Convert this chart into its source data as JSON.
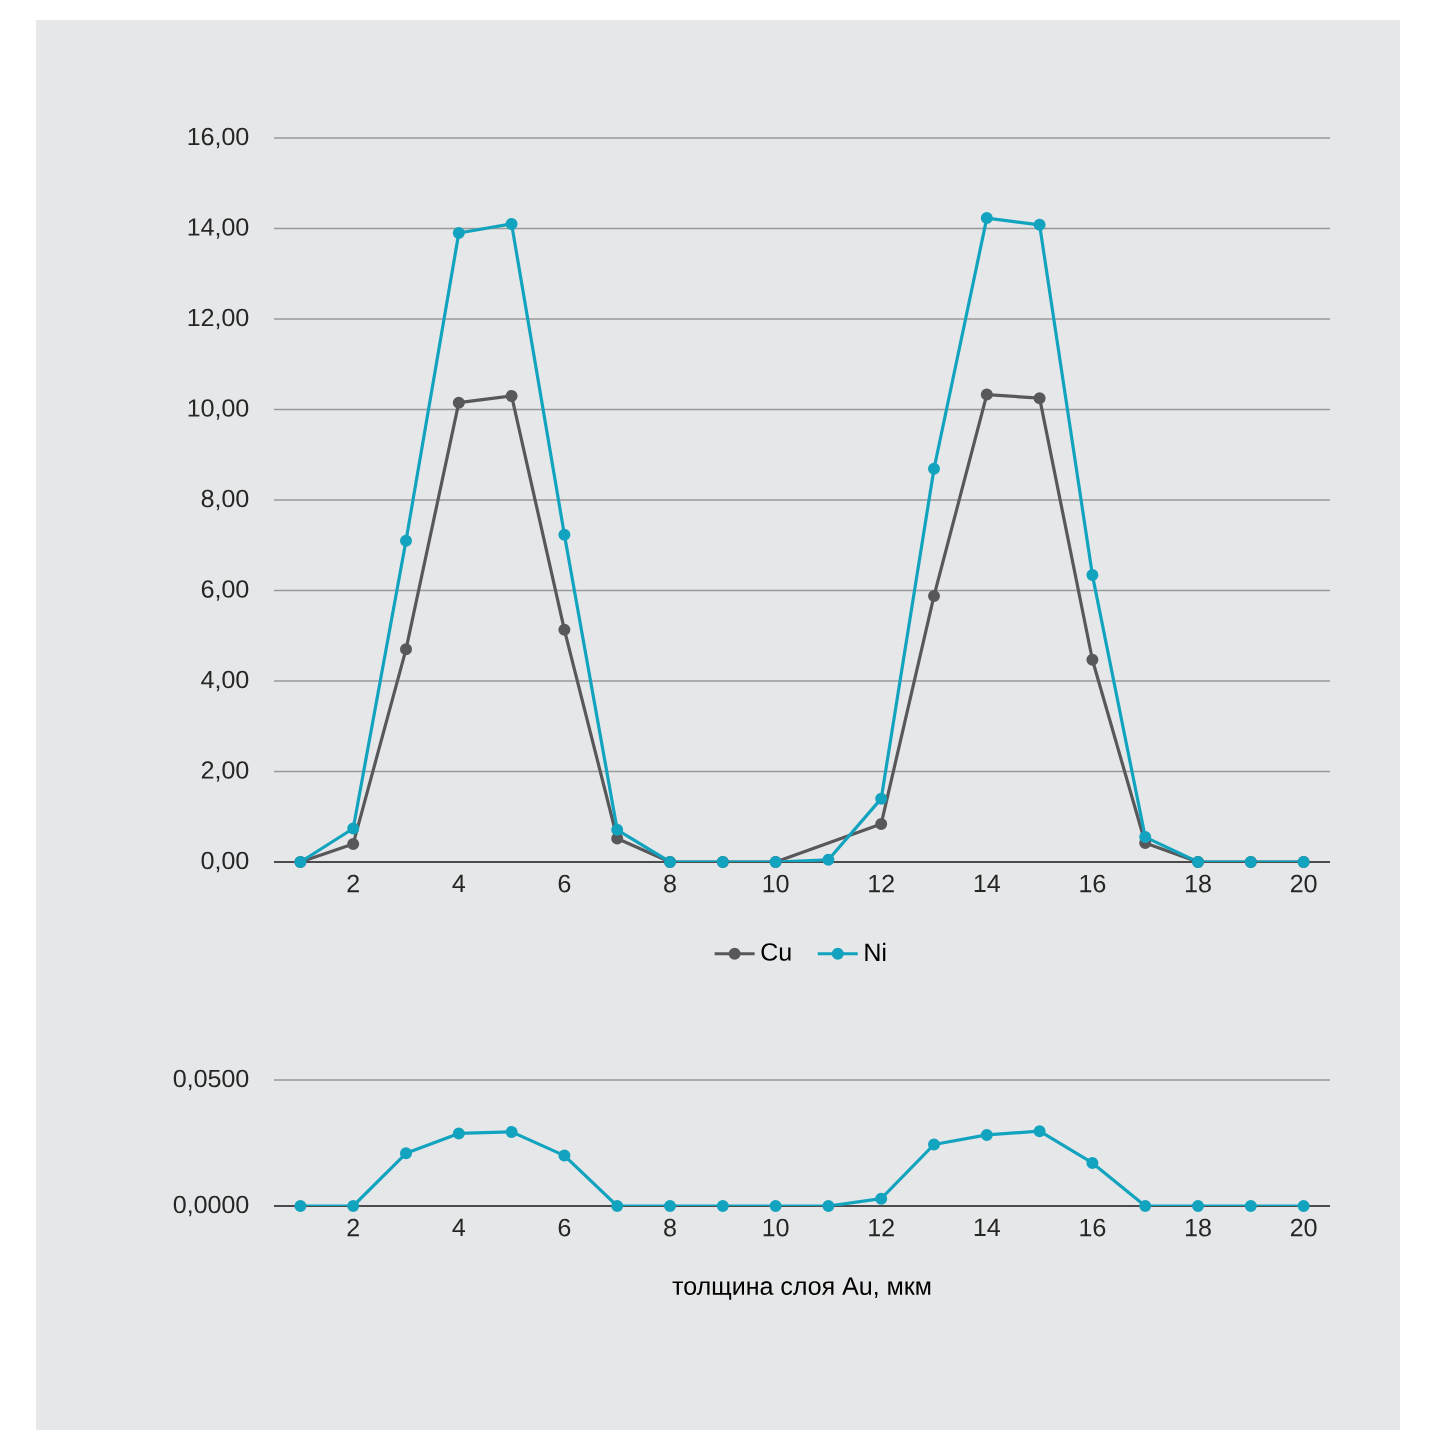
{
  "chart_data": [
    {
      "type": "line",
      "x": [
        1,
        2,
        3,
        4,
        5,
        6,
        7,
        8,
        9,
        10,
        11,
        12,
        13,
        14,
        15,
        16,
        17,
        18,
        19,
        20
      ],
      "xlim": [
        0.5,
        20.5
      ],
      "xticks": [
        2,
        4,
        6,
        8,
        10,
        12,
        14,
        16,
        18,
        20
      ],
      "ylim": [
        0,
        16
      ],
      "yticks": [
        {
          "value": 0,
          "label": "0,00"
        },
        {
          "value": 2,
          "label": "2,00"
        },
        {
          "value": 4,
          "label": "4,00"
        },
        {
          "value": 6,
          "label": "6,00"
        },
        {
          "value": 8,
          "label": "8,00"
        },
        {
          "value": 10,
          "label": "10,00"
        },
        {
          "value": 12,
          "label": "12,00"
        },
        {
          "value": 14,
          "label": "14,00"
        },
        {
          "value": 16,
          "label": "16,00"
        }
      ],
      "grid": "y",
      "marker": "circle",
      "legend": "bottom",
      "series": [
        {
          "name": "Cu",
          "color": "#58585a",
          "values": [
            0,
            0.4,
            4.7,
            10.15,
            10.3,
            5.13,
            0.52,
            0,
            0,
            0,
            null,
            0.84,
            5.88,
            10.33,
            10.25,
            4.47,
            0.42,
            0,
            0,
            0
          ]
        },
        {
          "name": "Ni",
          "color": "#12a3bf",
          "values": [
            0,
            0.74,
            7.1,
            13.9,
            14.1,
            7.23,
            0.71,
            0,
            0,
            0,
            0.05,
            1.4,
            8.69,
            14.23,
            14.08,
            6.34,
            0.55,
            0,
            0,
            0
          ]
        }
      ]
    },
    {
      "type": "line",
      "x": [
        1,
        2,
        3,
        4,
        5,
        6,
        7,
        8,
        9,
        10,
        11,
        12,
        13,
        14,
        15,
        16,
        17,
        18,
        19,
        20
      ],
      "xlim": [
        0.5,
        20.5
      ],
      "xticks": [
        2,
        4,
        6,
        8,
        10,
        12,
        14,
        16,
        18,
        20
      ],
      "ylim": [
        0,
        0.05
      ],
      "yticks": [
        {
          "value": 0,
          "label": "0,0000"
        },
        {
          "value": 0.05,
          "label": "0,0500"
        }
      ],
      "grid": "y",
      "marker": "circle",
      "xlabel": "толщина слоя  Au, мкм",
      "series": [
        {
          "color": "#12a3bf",
          "values": [
            0,
            0,
            0.0209,
            0.0288,
            0.0294,
            0.02,
            0,
            0,
            0,
            0,
            0,
            0.0029,
            0.0244,
            0.0282,
            0.0297,
            0.0171,
            0,
            0,
            0,
            0
          ]
        }
      ]
    }
  ]
}
